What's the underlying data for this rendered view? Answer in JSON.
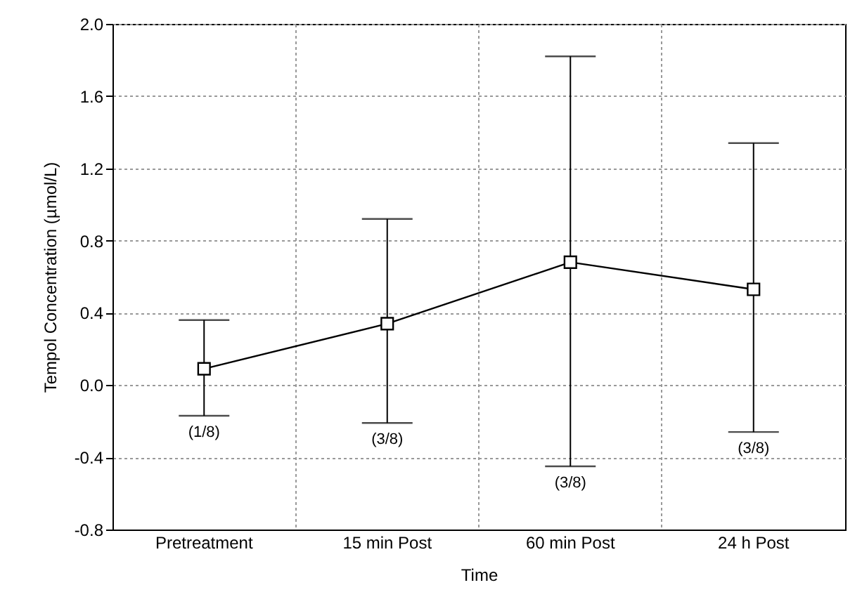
{
  "chart_data": {
    "type": "line",
    "xlabel": "Time",
    "ylabel": "Tempol Concentration (µmol/L)",
    "categories": [
      "Pretreatment",
      "15 min Post",
      "60 min Post",
      "24 h Post"
    ],
    "series": [
      {
        "color": "#000000",
        "values": [
          0.09,
          0.34,
          0.68,
          0.53
        ],
        "errors": [
          [
            -0.17,
            0.36
          ],
          [
            -0.21,
            0.92
          ],
          [
            -0.45,
            1.82
          ],
          [
            -0.26,
            1.34
          ]
        ]
      }
    ],
    "ylim": [
      -0.8,
      2.0
    ],
    "yticks": [
      {
        "value": -0.8,
        "label": "-0.8"
      },
      {
        "value": -0.4,
        "label": "-0.4"
      },
      {
        "value": 0,
        "label": "0.0"
      },
      {
        "value": 0.4,
        "label": "0.4"
      },
      {
        "value": 0.8,
        "label": "0.8"
      },
      {
        "value": 1.2,
        "label": "1.2"
      },
      {
        "value": 1.6,
        "label": "1.6"
      },
      {
        "value": 2.0,
        "label": "2.0"
      }
    ],
    "annotations": [
      "(1/8)",
      "(3/8)",
      "(3/8)",
      "(3/8)"
    ],
    "grid": true,
    "marker": "square",
    "line_style": "solid"
  }
}
